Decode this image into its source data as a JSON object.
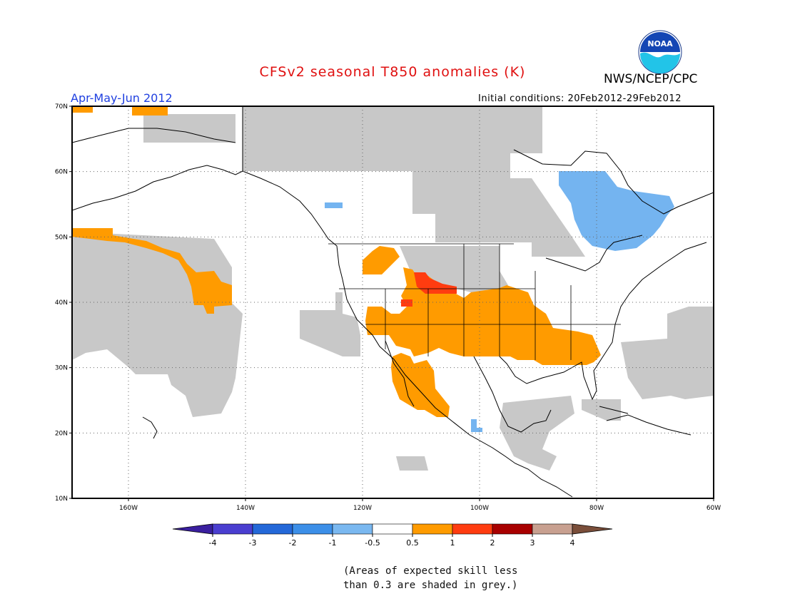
{
  "header": {
    "title": "CFSv2 seasonal T850 anomalies (K)",
    "organization": "NWS/NCEP/CPC",
    "logo_text": "NOAA",
    "season": "Apr-May-Jun 2012",
    "initial_conditions": "Initial conditions: 20Feb2012-29Feb2012"
  },
  "map": {
    "lat_labels": [
      "70N",
      "60N",
      "50N",
      "40N",
      "30N",
      "20N",
      "10N"
    ],
    "lon_labels": [
      "160W",
      "140W",
      "120W",
      "100W",
      "80W",
      "60W"
    ],
    "grey_meaning": "skill < 0.3"
  },
  "colorbar": {
    "labels": [
      "-4",
      "-3",
      "-2",
      "-1",
      "-0.5",
      "0.5",
      "1",
      "2",
      "3",
      "4"
    ],
    "colors": [
      "#3a1f9f",
      "#4a3ed0",
      "#2468d8",
      "#3c8fe8",
      "#7ab8f0",
      "#ffffff",
      "#ff9b00",
      "#ff3c10",
      "#a80000",
      "#c8a090",
      "#7a4e3a"
    ]
  },
  "note": {
    "line1": "(Areas of expected skill less",
    "line2": "than 0.3 are shaded in grey.)"
  },
  "colors": {
    "title": "#e01010",
    "season": "#2040e0",
    "grey": "#c8c8c8",
    "orange": "#ff9b00",
    "red": "#ff3c10",
    "light_blue": "#74b4f0"
  }
}
